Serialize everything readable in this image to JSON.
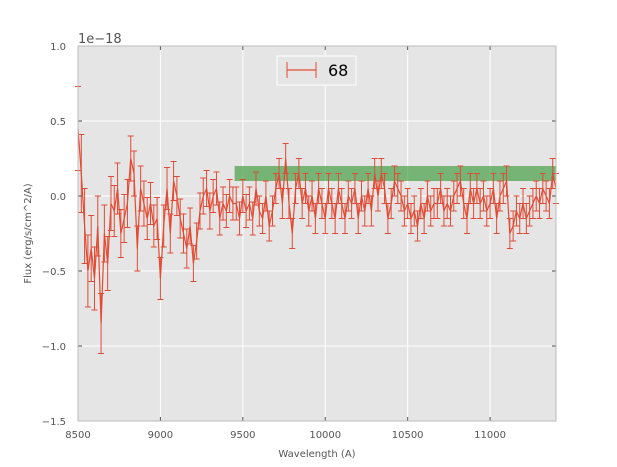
{
  "chart_data": {
    "type": "line",
    "title": "",
    "xlabel": "Wavelength (A)",
    "ylabel": "Flux (erg/s/cm^2/A)",
    "y_offset_label": "1e−18",
    "xlim": [
      8500,
      11400
    ],
    "ylim": [
      -1.5,
      1.0
    ],
    "xticks": [
      8500,
      9000,
      9500,
      10000,
      10500,
      11000
    ],
    "xtick_labels": [
      "8500",
      "9000",
      "9500",
      "10000",
      "10500",
      "11000"
    ],
    "yticks": [
      -1.5,
      -1.0,
      -0.5,
      0.0,
      0.5,
      1.0
    ],
    "ytick_labels": [
      "−1.5",
      "−1.0",
      "−0.5",
      "0.0",
      "0.5",
      "1.0"
    ],
    "grid": true,
    "legend_position": "top-center",
    "colors": {
      "series": "#e24a33",
      "band": "#3a9a3a",
      "background": "#e5e5e5"
    },
    "band": {
      "x": [
        9450,
        11400
      ],
      "y": [
        0.1,
        0.2
      ]
    },
    "series": [
      {
        "name": "68",
        "x": [
          8500,
          8520,
          8540,
          8560,
          8580,
          8600,
          8620,
          8640,
          8660,
          8680,
          8700,
          8720,
          8740,
          8760,
          8780,
          8800,
          8820,
          8840,
          8860,
          8880,
          8900,
          8920,
          8940,
          8960,
          8980,
          9000,
          9020,
          9040,
          9060,
          9080,
          9100,
          9120,
          9140,
          9160,
          9180,
          9200,
          9220,
          9240,
          9260,
          9280,
          9300,
          9320,
          9340,
          9360,
          9380,
          9400,
          9420,
          9440,
          9460,
          9480,
          9500,
          9520,
          9540,
          9560,
          9580,
          9600,
          9620,
          9640,
          9660,
          9680,
          9700,
          9720,
          9740,
          9760,
          9780,
          9800,
          9820,
          9840,
          9860,
          9880,
          9900,
          9920,
          9940,
          9960,
          9980,
          10000,
          10020,
          10040,
          10060,
          10080,
          10100,
          10120,
          10140,
          10160,
          10180,
          10200,
          10220,
          10240,
          10260,
          10280,
          10300,
          10320,
          10340,
          10360,
          10380,
          10400,
          10420,
          10440,
          10460,
          10480,
          10500,
          10520,
          10540,
          10560,
          10580,
          10600,
          10620,
          10640,
          10660,
          10680,
          10700,
          10720,
          10740,
          10760,
          10780,
          10800,
          10820,
          10840,
          10860,
          10880,
          10900,
          10920,
          10940,
          10960,
          10980,
          11000,
          11020,
          11040,
          11060,
          11080,
          11100,
          11120,
          11140,
          11160,
          11180,
          11200,
          11220,
          11240,
          11260,
          11280,
          11300,
          11320,
          11340,
          11360,
          11380,
          11400
        ],
        "y": [
          0.45,
          0.15,
          -0.2,
          -0.5,
          -0.35,
          -0.55,
          -0.2,
          -0.85,
          -0.25,
          -0.45,
          -0.05,
          -0.1,
          0.05,
          -0.25,
          -0.15,
          -0.05,
          0.25,
          0.15,
          -0.35,
          0.05,
          -0.05,
          -0.15,
          -0.05,
          -0.2,
          -0.15,
          -0.55,
          -0.2,
          0.05,
          -0.25,
          0.1,
          0.0,
          -0.15,
          -0.25,
          -0.35,
          -0.2,
          -0.45,
          -0.3,
          -0.1,
          0.0,
          0.05,
          -0.1,
          0.0,
          0.05,
          -0.15,
          -0.05,
          -0.1,
          0.0,
          -0.05,
          -0.05,
          -0.15,
          0.0,
          -0.1,
          -0.05,
          -0.15,
          0.05,
          -0.1,
          -0.15,
          0.0,
          -0.2,
          -0.1,
          0.05,
          0.15,
          -0.05,
          0.25,
          -0.05,
          -0.25,
          0.05,
          0.15,
          -0.05,
          0.05,
          -0.1,
          0.0,
          -0.15,
          0.05,
          -0.05,
          -0.15,
          0.05,
          -0.05,
          -0.15,
          0.05,
          -0.05,
          -0.15,
          0.0,
          -0.05,
          0.05,
          -0.15,
          0.0,
          -0.1,
          0.05,
          -0.1,
          0.15,
          0.0,
          0.15,
          0.05,
          -0.15,
          -0.05,
          0.1,
          0.05,
          0.0,
          -0.1,
          -0.05,
          -0.15,
          -0.1,
          -0.2,
          -0.05,
          -0.15,
          0.0,
          -0.1,
          -0.05,
          -0.05,
          0.05,
          -0.1,
          -0.05,
          -0.1,
          0.0,
          0.05,
          0.1,
          -0.05,
          -0.15,
          0.05,
          -0.05,
          0.05,
          -0.05,
          0.0,
          -0.1,
          -0.05,
          0.05,
          -0.15,
          0.0,
          0.05,
          0.1,
          -0.25,
          -0.2,
          -0.1,
          -0.15,
          -0.05,
          -0.15,
          -0.1,
          -0.05,
          0.0,
          -0.05,
          0.05,
          0.0,
          -0.05,
          0.15,
          0.05
        ],
        "yerr": [
          0.28,
          0.26,
          0.25,
          0.24,
          0.22,
          0.21,
          0.2,
          0.2,
          0.19,
          0.18,
          0.18,
          0.17,
          0.17,
          0.16,
          0.16,
          0.16,
          0.15,
          0.15,
          0.15,
          0.15,
          0.15,
          0.14,
          0.14,
          0.14,
          0.14,
          0.14,
          0.14,
          0.14,
          0.13,
          0.13,
          0.13,
          0.13,
          0.13,
          0.13,
          0.12,
          0.12,
          0.12,
          0.12,
          0.12,
          0.12,
          0.12,
          0.11,
          0.11,
          0.11,
          0.11,
          0.11,
          0.11,
          0.11,
          0.11,
          0.11,
          0.11,
          0.11,
          0.11,
          0.11,
          0.11,
          0.1,
          0.1,
          0.1,
          0.1,
          0.1,
          0.1,
          0.1,
          0.1,
          0.1,
          0.1,
          0.1,
          0.1,
          0.1,
          0.1,
          0.1,
          0.1,
          0.1,
          0.1,
          0.1,
          0.1,
          0.1,
          0.1,
          0.1,
          0.1,
          0.1,
          0.1,
          0.1,
          0.1,
          0.1,
          0.1,
          0.1,
          0.1,
          0.1,
          0.1,
          0.1,
          0.1,
          0.1,
          0.1,
          0.1,
          0.1,
          0.1,
          0.1,
          0.1,
          0.1,
          0.1,
          0.1,
          0.1,
          0.1,
          0.1,
          0.1,
          0.1,
          0.1,
          0.1,
          0.1,
          0.1,
          0.1,
          0.1,
          0.1,
          0.1,
          0.1,
          0.1,
          0.1,
          0.1,
          0.1,
          0.1,
          0.1,
          0.1,
          0.1,
          0.1,
          0.1,
          0.1,
          0.1,
          0.1,
          0.1,
          0.1,
          0.1,
          0.1,
          0.1,
          0.1,
          0.1,
          0.1,
          0.1,
          0.1,
          0.1,
          0.1,
          0.1,
          0.1,
          0.1,
          0.1,
          0.1,
          0.1
        ]
      }
    ]
  }
}
